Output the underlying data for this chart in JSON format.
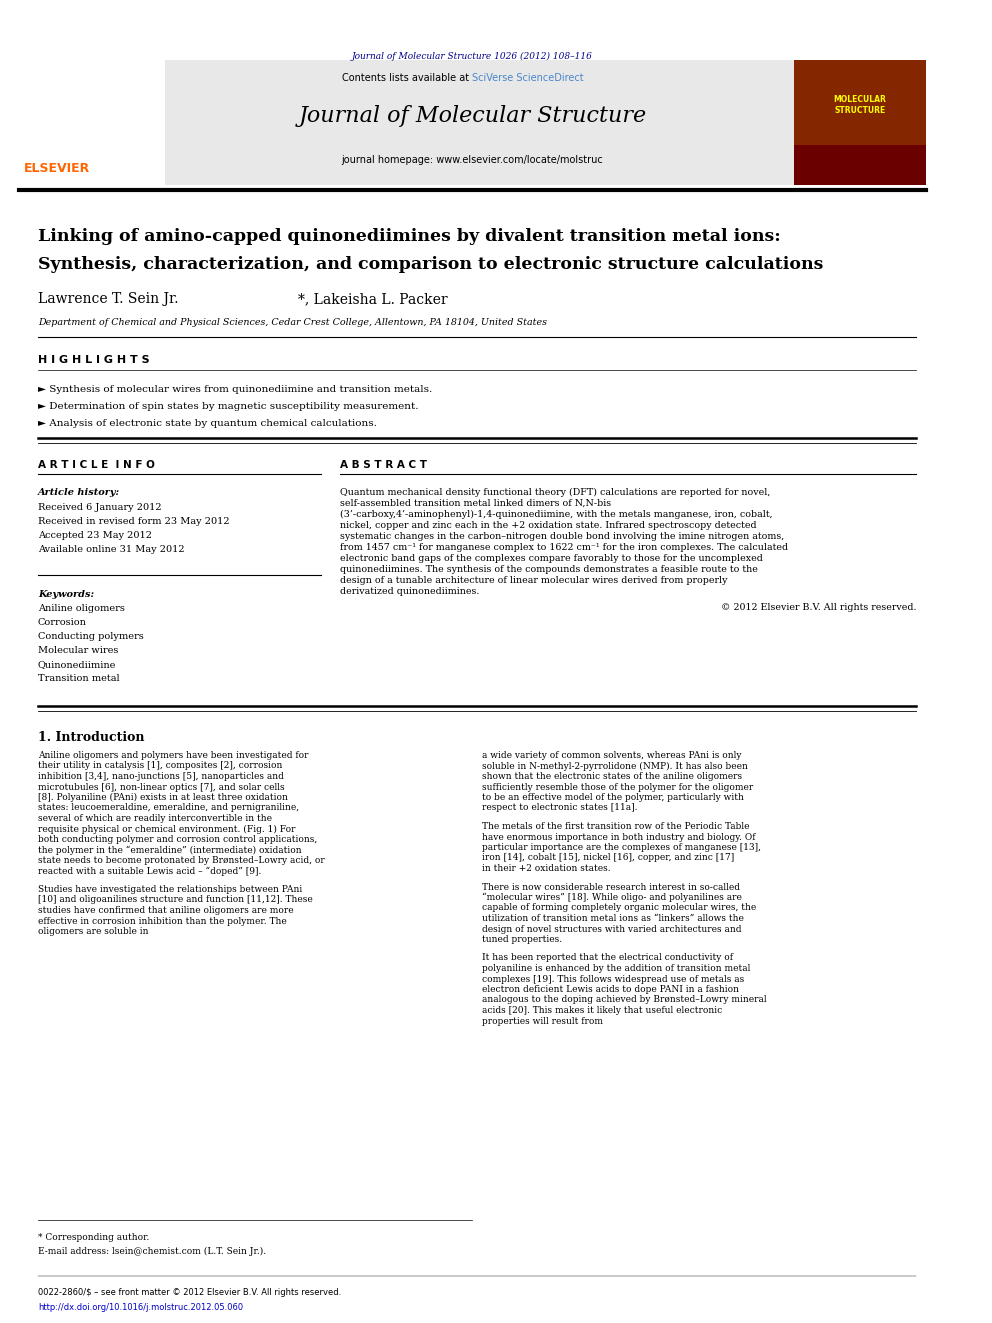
{
  "page_width": 9.92,
  "page_height": 13.23,
  "bg_color": "#ffffff",
  "journal_ref": "Journal of Molecular Structure 1026 (2012) 108–116",
  "journal_ref_color": "#00008B",
  "header_bg": "#e8e8e8",
  "contents_text": "Contents lists available at ",
  "sciverse_text": "SciVerse ScienceDirect",
  "sciverse_color": "#4a86c8",
  "journal_title": "Journal of Molecular Structure",
  "journal_homepage": "journal homepage: www.elsevier.com/locate/molstruc",
  "elsevier_color": "#FF6600",
  "paper_title_line1": "Linking of amino-capped quinonediimines by divalent transition metal ions:",
  "paper_title_line2": "Synthesis, characterization, and comparison to electronic structure calculations",
  "authors": "Lawrence T. Sein Jr.",
  "authors2": "*, Lakeisha L. Packer",
  "affiliation": "Department of Chemical and Physical Sciences, Cedar Crest College, Allentown, PA 18104, United States",
  "highlights_label": "H I G H L I G H T S",
  "highlight1": "► Synthesis of molecular wires from quinonediimine and transition metals.",
  "highlight2": "► Determination of spin states by magnetic susceptibility measurement.",
  "highlight3": "► Analysis of electronic state by quantum chemical calculations.",
  "article_info_label": "A R T I C L E  I N F O",
  "abstract_label": "A B S T R A C T",
  "article_history_label": "Article history:",
  "received": "Received 6 January 2012",
  "revised": "Received in revised form 23 May 2012",
  "accepted": "Accepted 23 May 2012",
  "available": "Available online 31 May 2012",
  "keywords_label": "Keywords:",
  "keyword1": "Aniline oligomers",
  "keyword2": "Corrosion",
  "keyword3": "Conducting polymers",
  "keyword4": "Molecular wires",
  "keyword5": "Quinonediimine",
  "keyword6": "Transition metal",
  "abstract_text": "Quantum mechanical density functional theory (DFT) calculations are reported for novel, self-assembled transition metal linked dimers of N,N-bis (3’-carboxy,4’-aminophenyl)-1,4-quinonediimine, with the metals manganese, iron, cobalt, nickel, copper and zinc each in the +2 oxidation state. Infrared spectroscopy detected systematic changes in the carbon–nitrogen double bond involving the imine nitrogen atoms, from 1457 cm⁻¹ for manganese complex to 1622 cm⁻¹ for the iron complexes. The calculated electronic band gaps of the complexes compare favorably to those for the uncomplexed quinonediimines. The synthesis of the compounds demonstrates a feasible route to the design of a tunable architecture of linear molecular wires derived from properly derivatized quinonediimines.",
  "copyright": "© 2012 Elsevier B.V. All rights reserved.",
  "intro_label": "1. Introduction",
  "intro_col1_p1": "Aniline oligomers and polymers have been investigated for their utility in catalysis [1], composites [2], corrosion inhibition [3,4], nano-junctions [5], nanoparticles and microtubules [6], non-linear optics [7], and solar cells [8]. Polyaniline (PAni) exists in at least three oxidation states: leucoemeraldine, emeraldine, and pernigraniline, several of which are readily interconvertible in the requisite physical or chemical environment. (Fig. 1) For both conducting polymer and corrosion control applications, the polymer in the “emeraldine” (intermediate) oxidation state needs to become protonated by Brønsted–Lowry acid, or reacted with a suitable Lewis acid – “doped” [9].",
  "intro_col1_p2": "Studies have investigated the relationships between PAni [10] and oligoanilines structure and function [11,12]. These studies have confirmed that aniline oligomers are more effective in corrosion inhibition than the polymer. The oligomers are soluble in",
  "intro_col2_p1": "a wide variety of common solvents, whereas PAni is only soluble in N-methyl-2-pyrrolidone (NMP). It has also been shown that the electronic states of the aniline oligomers sufficiently resemble those of the polymer for the oligomer to be an effective model of the polymer, particularly with respect to electronic states [11a].",
  "intro_col2_p2": "The metals of the first transition row of the Periodic Table have enormous importance in both industry and biology. Of particular importance are the complexes of manganese [13], iron [14], cobalt [15], nickel [16], copper, and zinc [17] in their +2 oxidation states.",
  "intro_col2_p3": "There is now considerable research interest in so-called “molecular wires” [18]. While oligo- and polyanilines are capable of forming completely organic molecular wires, the utilization of transition metal ions as “linkers” allows the design of novel structures with varied architectures and tuned properties.",
  "intro_col2_p4": "It has been reported that the electrical conductivity of polyaniline is enhanced by the addition of transition metal complexes [19]. This follows widespread use of metals as electron deficient Lewis acids to dope PANI in a fashion analogous to the doping achieved by Brønsted–Lowry mineral acids [20]. This makes it likely that useful electronic properties will result from",
  "footnote_star": "* Corresponding author.",
  "footnote_email": "E-mail address: lsein@chemist.com (L.T. Sein Jr.).",
  "issn_line": "0022-2860/$ – see front matter © 2012 Elsevier B.V. All rights reserved.",
  "doi_line": "http://dx.doi.org/10.1016/j.molstruc.2012.05.060",
  "doi_color": "#0000CC"
}
